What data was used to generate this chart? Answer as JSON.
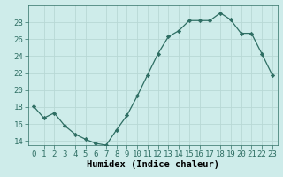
{
  "x": [
    0,
    1,
    2,
    3,
    4,
    5,
    6,
    7,
    8,
    9,
    10,
    11,
    12,
    13,
    14,
    15,
    16,
    17,
    18,
    19,
    20,
    21,
    22,
    23
  ],
  "y": [
    18.1,
    16.7,
    17.3,
    15.8,
    14.8,
    14.2,
    13.7,
    13.5,
    15.3,
    17.0,
    19.3,
    21.8,
    24.3,
    26.3,
    27.0,
    28.2,
    28.2,
    28.2,
    29.1,
    28.3,
    26.7,
    26.7,
    24.3,
    21.8
  ],
  "line_color": "#2e6e63",
  "marker": "D",
  "marker_size": 2.2,
  "bg_color": "#ceecea",
  "grid_color": "#b8d8d5",
  "xlabel": "Humidex (Indice chaleur)",
  "ylim": [
    13.5,
    30.0
  ],
  "yticks": [
    14,
    16,
    18,
    20,
    22,
    24,
    26,
    28
  ],
  "xticks": [
    0,
    1,
    2,
    3,
    4,
    5,
    6,
    7,
    8,
    9,
    10,
    11,
    12,
    13,
    14,
    15,
    16,
    17,
    18,
    19,
    20,
    21,
    22,
    23
  ],
  "xlabel_fontsize": 7.5,
  "tick_fontsize": 6.5
}
